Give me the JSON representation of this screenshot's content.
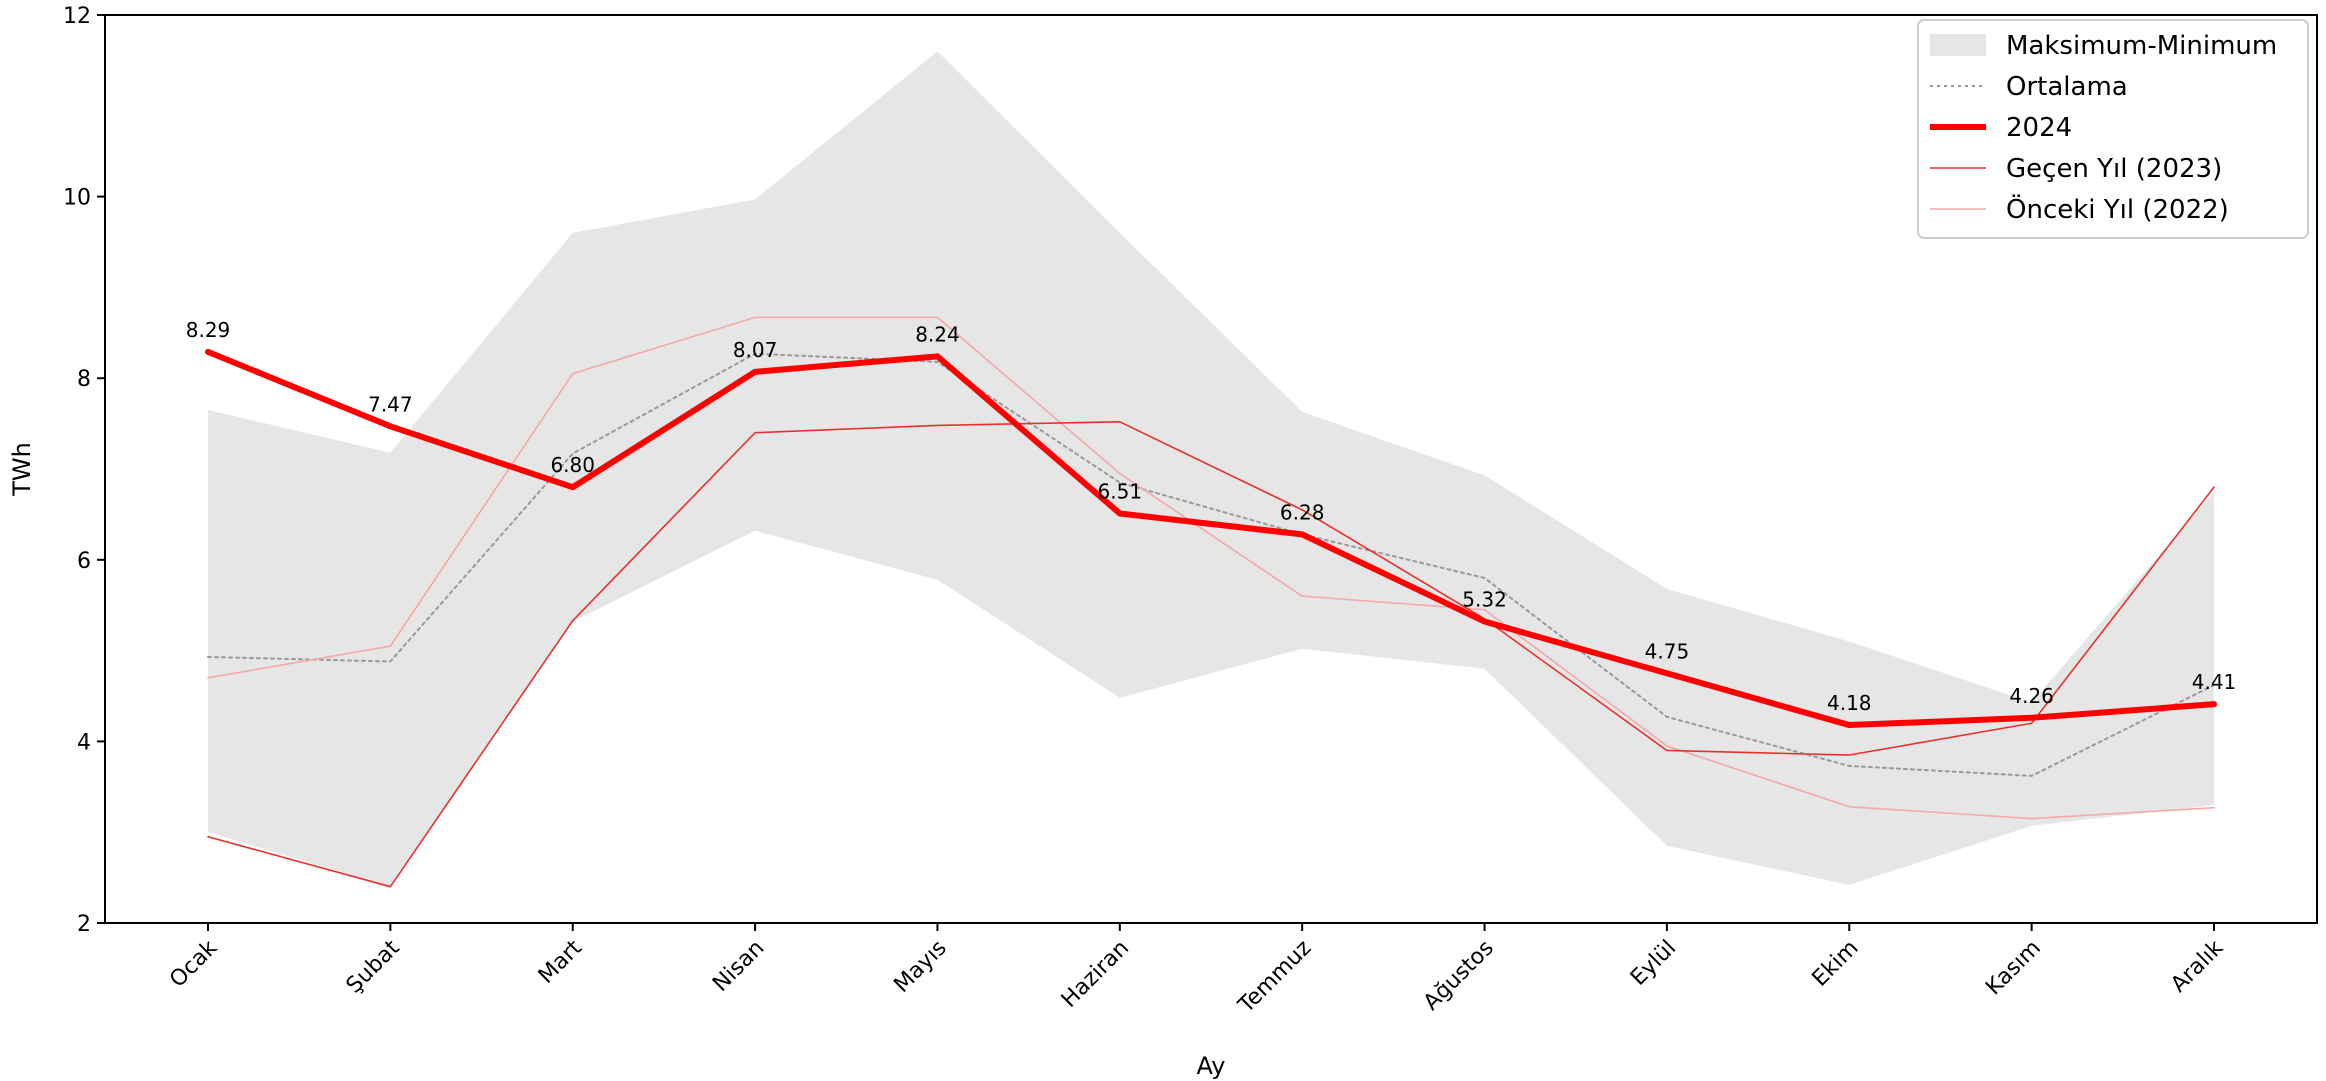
{
  "chart_data": {
    "type": "line",
    "xlabel": "Ay",
    "ylabel": "TWh",
    "ylim": [
      2,
      12
    ],
    "yticks": [
      2,
      4,
      6,
      8,
      10,
      12
    ],
    "categories": [
      "Ocak",
      "Şubat",
      "Mart",
      "Nisan",
      "Mayıs",
      "Haziran",
      "Temmuz",
      "Ağustos",
      "Eylül",
      "Ekim",
      "Kasım",
      "Aralık"
    ],
    "band": {
      "name": "Maksimum-Minimum",
      "color": "#e6e6e6",
      "max": [
        7.65,
        7.18,
        9.6,
        9.97,
        11.6,
        9.6,
        7.63,
        6.93,
        5.68,
        5.1,
        4.43,
        6.75
      ],
      "min": [
        3.0,
        2.4,
        5.32,
        6.32,
        5.78,
        4.48,
        5.02,
        4.8,
        2.85,
        2.42,
        3.07,
        3.3
      ]
    },
    "series": [
      {
        "name": "Ortalama",
        "color": "#999999",
        "style": "dotted",
        "values": [
          4.93,
          4.88,
          7.17,
          8.27,
          8.18,
          6.85,
          6.28,
          5.8,
          4.27,
          3.73,
          3.62,
          4.62
        ]
      },
      {
        "name": "2024",
        "color": "#ff0000",
        "style": "bold",
        "values": [
          8.29,
          7.47,
          6.8,
          8.07,
          8.24,
          6.51,
          6.28,
          5.32,
          4.75,
          4.18,
          4.26,
          4.41
        ],
        "labels": [
          "8.29",
          "7.47",
          "6.80",
          "8.07",
          "8.24",
          "6.51",
          "6.28",
          "5.32",
          "4.75",
          "4.18",
          "4.26",
          "4.41"
        ]
      },
      {
        "name": "Geçen Yıl (2023)",
        "color": "#e8312e",
        "style": "thin",
        "values": [
          2.95,
          2.4,
          5.33,
          7.4,
          7.48,
          7.52,
          6.55,
          5.35,
          3.9,
          3.85,
          4.2,
          6.8
        ]
      },
      {
        "name": "Önceki Yıl (2022)",
        "color": "#f4a8a8",
        "style": "faint",
        "values": [
          4.7,
          5.05,
          8.05,
          8.67,
          8.67,
          6.95,
          5.6,
          5.45,
          3.95,
          3.28,
          3.15,
          3.27
        ]
      }
    ],
    "legend": "top-right",
    "grid": false
  }
}
